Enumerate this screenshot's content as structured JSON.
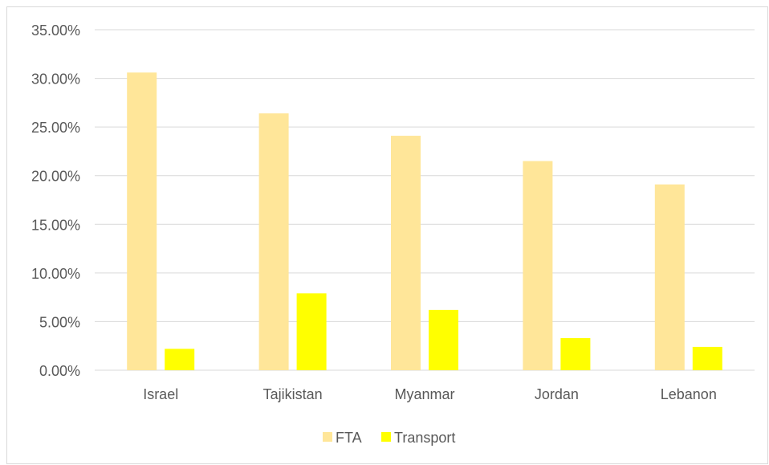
{
  "chart_data": {
    "type": "bar",
    "title": "",
    "xlabel": "",
    "ylabel": "",
    "categories": [
      "Israel",
      "Tajikistan",
      "Myanmar",
      "Jordan",
      "Lebanon"
    ],
    "series": [
      {
        "name": "FTA",
        "values": [
          0.306,
          0.264,
          0.241,
          0.215,
          0.191
        ],
        "color": "#ffe699"
      },
      {
        "name": "Transport",
        "values": [
          0.022,
          0.079,
          0.062,
          0.033,
          0.024
        ],
        "color": "#ffff00"
      }
    ],
    "ylim": [
      0,
      0.35
    ],
    "yticks": [
      0,
      0.05,
      0.1,
      0.15,
      0.2,
      0.25,
      0.3,
      0.35
    ],
    "ytick_labels": [
      "0.00%",
      "5.00%",
      "10.00%",
      "15.00%",
      "20.00%",
      "25.00%",
      "30.00%",
      "35.00%"
    ],
    "grid": true,
    "legend": "bottom"
  }
}
